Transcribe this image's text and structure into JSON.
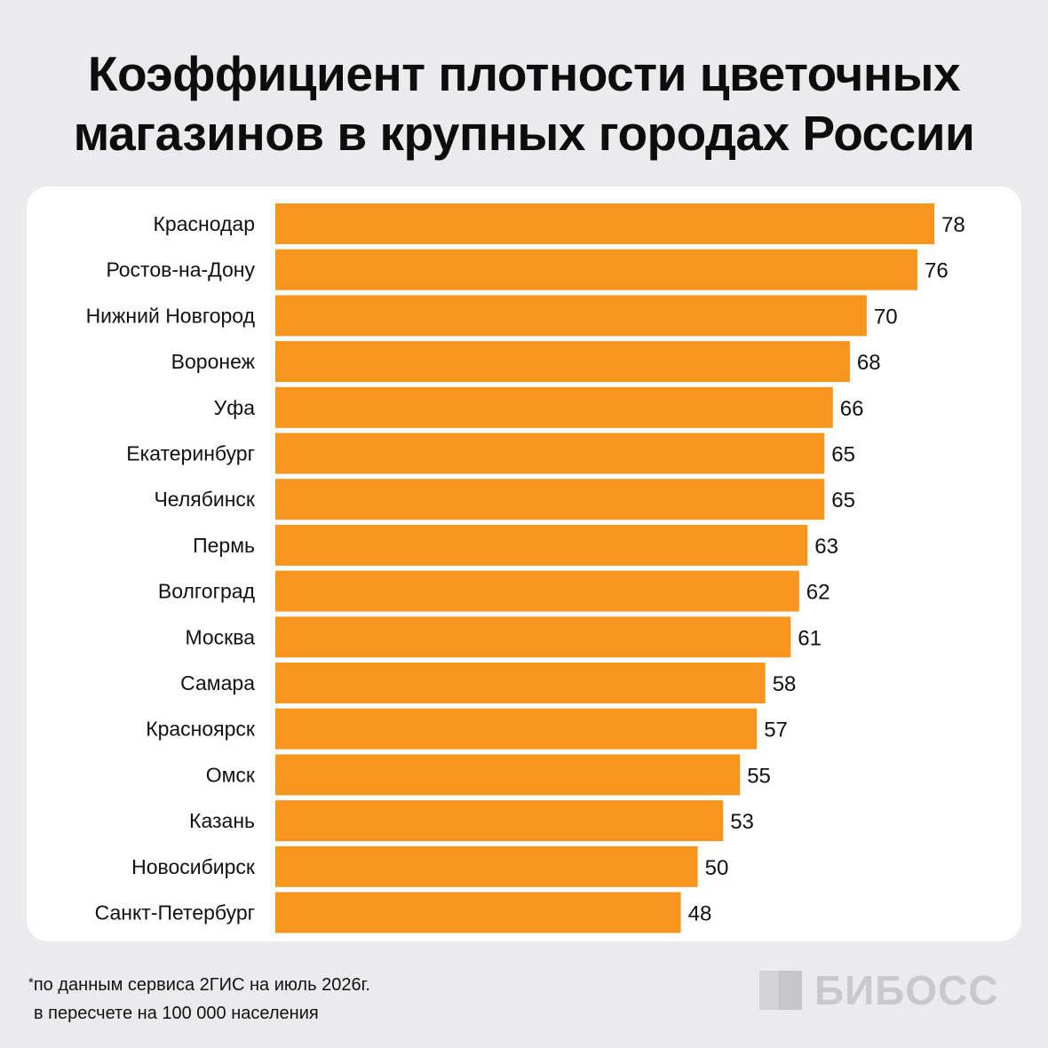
{
  "title": {
    "line1": "Коэффициент плотности цветочных",
    "line2": "магазинов в крупных городах России"
  },
  "footnote": {
    "star": "*",
    "line1": "по данным сервиса 2ГИС на июль 2026г.",
    "line2": "в пересчете на 100 000 населения"
  },
  "logo": {
    "text": "БИБОСС",
    "icon": "bibos-logo-icon"
  },
  "colors": {
    "bar": "#f7961e",
    "background": "#ebebed",
    "card": "#ffffff"
  },
  "chart_data": {
    "type": "bar",
    "orientation": "horizontal",
    "categories": [
      "Краснодар",
      "Ростов-на-Дону",
      "Нижний Новгород",
      "Воронеж",
      "Уфа",
      "Екатеринбург",
      "Челябинск",
      "Пермь",
      "Волгоград",
      "Москва",
      "Самара",
      "Красноярск",
      "Омск",
      "Казань",
      "Новосибирск",
      "Санкт-Петербург"
    ],
    "values": [
      78,
      76,
      70,
      68,
      66,
      65,
      65,
      63,
      62,
      61,
      58,
      57,
      55,
      53,
      50,
      48
    ],
    "data_labels": true,
    "grid": false,
    "legend": "none",
    "xlim": [
      0,
      78
    ],
    "xlabel": "",
    "ylabel": ""
  }
}
